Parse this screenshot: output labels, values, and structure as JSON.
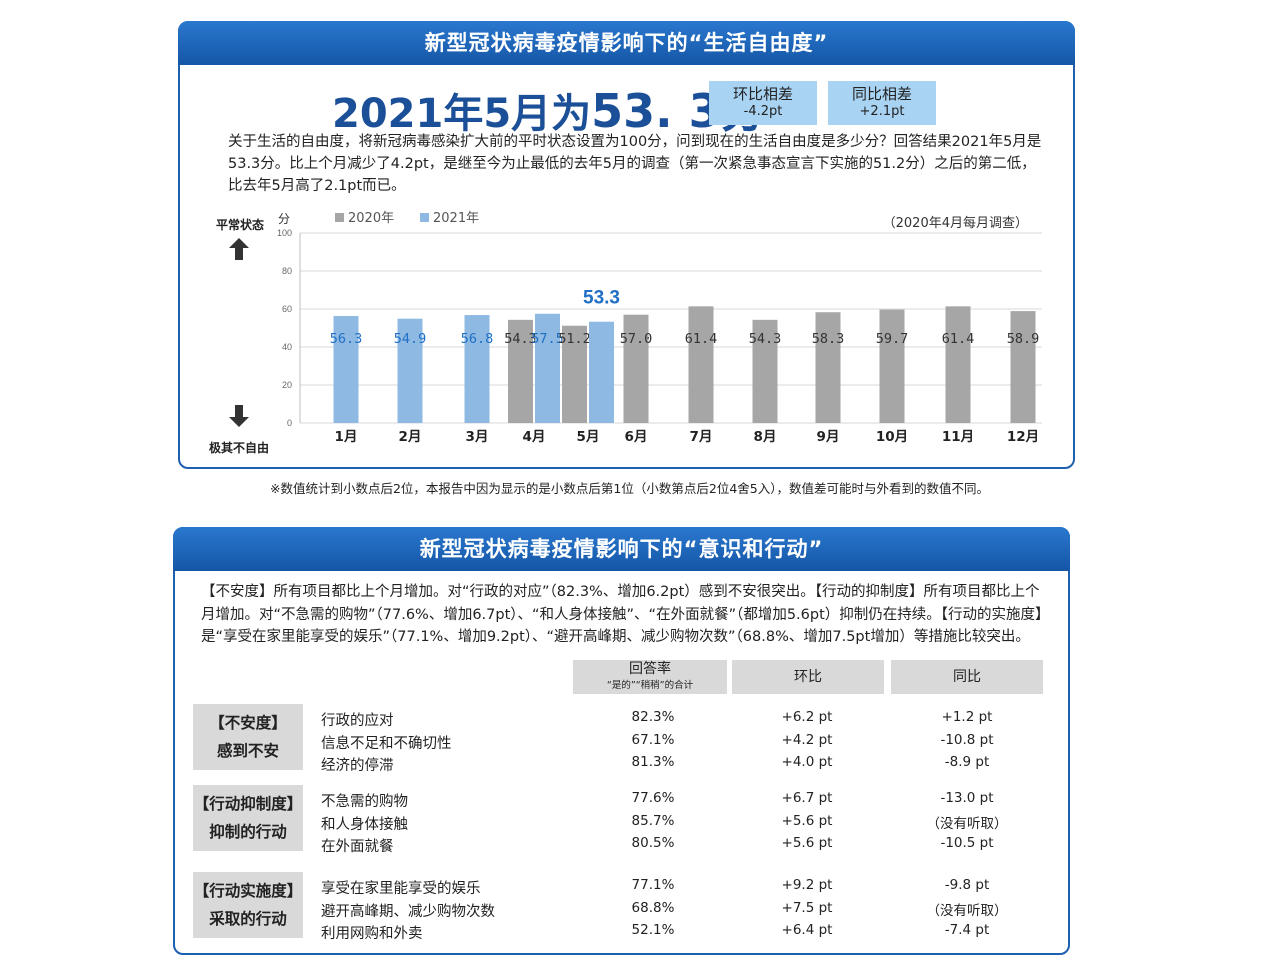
{
  "panel1": {
    "title": "新型冠状病毒疫情影响下的“生活自由度”",
    "headline_prefix": "2021年5月为",
    "headline_value": "53. 3分",
    "mom_label": "环比相差",
    "mom_value": "-4.2pt",
    "yoy_label": "同比相差",
    "yoy_value": "+2.1pt",
    "description": "关于生活的自由度，将新冠病毒感染扩大前的平时状态设置为100分，问到现在的生活自由度是多少分？回答结果2021年5月是53.3分。比上个月减少了4.2pt，是继至今为止最低的去年5月的调查（第一次紧急事态宣言下实施的51.2分）之后的第二低，比去年5月高了2.1pt而已。",
    "top_label": "平常状态",
    "bottom_label": "极其不自由",
    "note": "※数值统计到小数点后2位，本报告中因为显示的是小数点后第1位（小数第点后2位4舍5入），数值差可能时与外看到的数值不同。"
  },
  "chart_data": {
    "type": "bar",
    "ylabel": "分",
    "ylim": [
      0,
      100
    ],
    "yticks": [
      0,
      20,
      40,
      60,
      80,
      100
    ],
    "survey_note": "（2020年4月每月调查）",
    "categories": [
      "1月",
      "2月",
      "3月",
      "4月",
      "5月",
      "6月",
      "7月",
      "8月",
      "9月",
      "10月",
      "11月",
      "12月"
    ],
    "series": [
      {
        "name": "2020年",
        "color": "#a6a6a6",
        "values": [
          null,
          null,
          null,
          54.3,
          51.2,
          57.0,
          61.4,
          54.3,
          58.3,
          59.7,
          61.4,
          58.9
        ]
      },
      {
        "name": "2021年",
        "color": "#8eb9e3",
        "values": [
          56.3,
          54.9,
          56.8,
          57.5,
          53.3,
          null,
          null,
          null,
          null,
          null,
          null,
          null
        ]
      }
    ],
    "highlight": {
      "category": "5月",
      "series": "2021年",
      "label": "53.3"
    }
  },
  "panel2": {
    "title": "新型冠状病毒疫情影响下的“意识和行动”",
    "description": "【不安度】所有项目都比上个月增加。对“行政的对应”（82.3%、增加6.2pt）感到不安很突出。【行动的抑制度】所有项目都比上个月增加。对“不急需的购物”（77.6%、增加6.7pt）、“和人身体接触”、“在外面就餐”（都增加5.6pt）抑制仍在持续。【行动的实施度】是“享受在家里能享受的娱乐”（77.1%、增加9.2pt）、“避开高峰期、减少购物次数”（68.8%、增加7.5pt增加）等措施比较突出。",
    "col_rate": "回答率",
    "col_rate_sub": "“是的”“稍稍”的合计",
    "col_mom": "环比",
    "col_yoy": "同比",
    "groups": [
      {
        "cat1": "【不安度】",
        "cat2": "感到不安",
        "rows": [
          {
            "label": "行政的应对",
            "rate": "82.3%",
            "mom": "+6.2 pt",
            "yoy": "+1.2 pt",
            "yoy2": ""
          },
          {
            "label": "信息不足和不确切性",
            "rate": "67.1%",
            "mom": "+4.2 pt",
            "yoy": "-10.8 pt",
            "yoy2": ""
          },
          {
            "label": "经济的停滞",
            "rate": "81.3%",
            "mom": "+4.0 pt",
            "yoy": "-8.9 pt",
            "yoy2": ""
          }
        ]
      },
      {
        "cat1": "【行动抑制度】",
        "cat2": "抑制的行动",
        "rows": [
          {
            "label": "不急需的购物",
            "rate": "77.6%",
            "mom": "+6.7 pt",
            "yoy": "-13.0 pt",
            "yoy2": "（没有听取）"
          },
          {
            "label": "和人身体接触",
            "rate": "85.7%",
            "mom": "+5.6 pt",
            "yoy": "",
            "yoy2": ""
          },
          {
            "label": "在外面就餐",
            "rate": "80.5%",
            "mom": "+5.6 pt",
            "yoy": "-10.5 pt",
            "yoy2": ""
          }
        ]
      },
      {
        "cat1": "【行动实施度】",
        "cat2": "采取的行动",
        "rows": [
          {
            "label": "享受在家里能享受的娱乐",
            "rate": "77.1%",
            "mom": "+9.2 pt",
            "yoy": "-9.8 pt",
            "yoy2": "（没有听取）"
          },
          {
            "label": "避开高峰期、减少购物次数",
            "rate": "68.8%",
            "mom": "+7.5 pt",
            "yoy": "",
            "yoy2": ""
          },
          {
            "label": "利用网购和外卖",
            "rate": "52.1%",
            "mom": "+6.4 pt",
            "yoy": "-7.4 pt",
            "yoy2": ""
          }
        ]
      }
    ]
  }
}
